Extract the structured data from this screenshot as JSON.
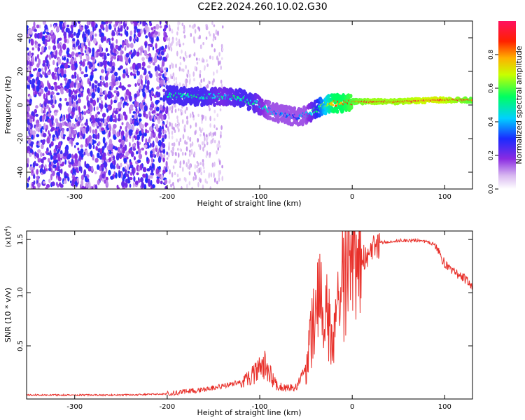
{
  "chart_data": [
    {
      "type": "heatmap",
      "title": "C2E2.2024.260.10.02.G30",
      "xlabel": "Height of straight line (km)",
      "ylabel": "Frequency (Hz)",
      "xlim": [
        -352,
        130
      ],
      "ylim": [
        -50,
        50
      ],
      "xticks": [
        -300,
        -200,
        -100,
        0,
        100
      ],
      "xtick_labels": [
        "-300",
        "-200",
        "-100",
        "0",
        "100"
      ],
      "yticks": [
        -40,
        -20,
        0,
        20,
        40
      ],
      "ytick_labels": [
        "-40",
        "-20",
        "0",
        "20",
        "40"
      ],
      "colorbar": {
        "label": "Normalized spectral amplitude",
        "range": [
          0,
          1
        ],
        "ticks": [
          0.0,
          0.2,
          0.4,
          0.6,
          0.8
        ],
        "tick_labels": [
          "0.0",
          "0.2",
          "0.4",
          "0.6",
          "0.8"
        ]
      },
      "ridge": {
        "x": [
          -200,
          -180,
          -160,
          -140,
          -120,
          -110,
          -100,
          -90,
          -80,
          -70,
          -60,
          -50,
          -40,
          -30,
          -20,
          -10,
          0,
          20,
          50,
          90,
          130
        ],
        "y": [
          6,
          5,
          5,
          5,
          4,
          2,
          0,
          -3,
          -5,
          -6,
          -7,
          -6,
          -3,
          0,
          1,
          1,
          2,
          2,
          2,
          3,
          3
        ],
        "amplitude": [
          0.5,
          0.5,
          0.5,
          0.45,
          0.5,
          0.5,
          0.45,
          0.4,
          0.35,
          0.35,
          0.3,
          0.4,
          0.5,
          0.65,
          0.8,
          0.8,
          0.85,
          0.9,
          0.9,
          0.95,
          0.85
        ]
      },
      "noise_region": {
        "x_range": [
          -352,
          -200
        ],
        "amplitude": 0.2
      }
    },
    {
      "type": "line",
      "title": "",
      "xlabel": "Height of straight line (km)",
      "ylabel": "SNR (10 * v/v)",
      "y_multiplier": "(x10",
      "y_multiplier_exp": "4",
      "y_multiplier_close": ")",
      "xlim": [
        -352,
        130
      ],
      "ylim": [
        0,
        1.58
      ],
      "xticks": [
        -300,
        -200,
        -100,
        0,
        100
      ],
      "xtick_labels": [
        "-300",
        "-200",
        "-100",
        "0",
        "100"
      ],
      "yticks": [
        0.5,
        1.0,
        1.5
      ],
      "ytick_labels": [
        "0.5",
        "1.0",
        "1.5"
      ],
      "series": [
        {
          "name": "SNR",
          "color": "#e8302a",
          "x": [
            -352,
            -300,
            -250,
            -200,
            -180,
            -160,
            -140,
            -120,
            -110,
            -100,
            -95,
            -90,
            -85,
            -80,
            -70,
            -60,
            -50,
            -45,
            -40,
            -35,
            -30,
            -25,
            -20,
            -15,
            -10,
            -5,
            0,
            5,
            10,
            15,
            20,
            25,
            30,
            40,
            50,
            60,
            70,
            80,
            90,
            95,
            100,
            105,
            110,
            115,
            120,
            125,
            130
          ],
          "values": [
            0.03,
            0.03,
            0.03,
            0.04,
            0.06,
            0.08,
            0.11,
            0.15,
            0.22,
            0.28,
            0.32,
            0.25,
            0.18,
            0.12,
            0.1,
            0.12,
            0.3,
            0.55,
            0.8,
            0.95,
            0.85,
            0.7,
            0.5,
            0.9,
            1.1,
            1.15,
            1.25,
            1.3,
            1.35,
            1.38,
            1.42,
            1.45,
            1.47,
            1.48,
            1.49,
            1.49,
            1.49,
            1.48,
            1.45,
            1.36,
            1.27,
            1.22,
            1.2,
            1.17,
            1.14,
            1.11,
            1.06
          ]
        }
      ]
    }
  ]
}
